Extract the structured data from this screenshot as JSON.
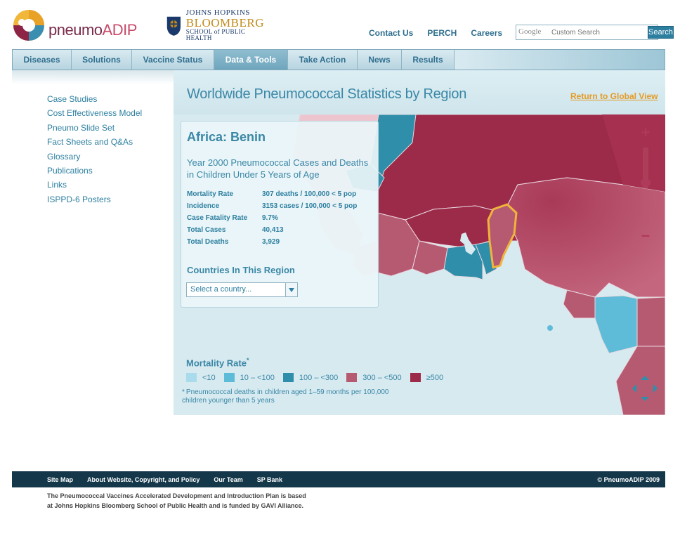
{
  "header": {
    "logo_text_a": "pneumo",
    "logo_text_b": "ADIP",
    "jhu_line1": "JOHNS HOPKINS",
    "jhu_line2": "BLOOMBERG",
    "jhu_line3": "SCHOOL of PUBLIC HEALTH",
    "links": [
      "Contact Us",
      "PERCH",
      "Careers"
    ],
    "search_placeholder": "Custom Search",
    "search_brand": "Google",
    "search_button": "Search"
  },
  "nav": {
    "tabs": [
      {
        "label": "Diseases"
      },
      {
        "label": "Solutions"
      },
      {
        "label": "Vaccine Status"
      },
      {
        "label": "Data & Tools"
      },
      {
        "label": "Take Action"
      },
      {
        "label": "News"
      },
      {
        "label": "Results"
      }
    ],
    "active": "Data & Tools"
  },
  "sidebar": {
    "items": [
      {
        "label": "Case Studies"
      },
      {
        "label": "Cost Effectiveness Model"
      },
      {
        "label": "Pneumo Slide Set"
      },
      {
        "label": "Fact Sheets and Q&As"
      },
      {
        "label": "Glossary"
      },
      {
        "label": "Publications"
      },
      {
        "label": "Links"
      },
      {
        "label": "ISPPD-6 Posters"
      }
    ]
  },
  "main": {
    "title": "Worldwide Pneumococcal Statistics by Region",
    "return_link": "Return to Global View",
    "info": {
      "country": "Africa: Benin",
      "subtitle": "Year 2000 Pneumococcal Cases and Deaths in Children Under 5 Years of Age",
      "stats": [
        {
          "key": "Mortality Rate",
          "value": "307 deaths / 100,000 < 5 pop"
        },
        {
          "key": "Incidence",
          "value": "3153 cases / 100,000 < 5 pop"
        },
        {
          "key": "Case Fatality Rate",
          "value": "9.7%"
        },
        {
          "key": "Total Cases",
          "value": "40,413"
        },
        {
          "key": "Total Deaths",
          "value": "3,929"
        }
      ],
      "countries_heading": "Countries In This Region",
      "select_placeholder": "Select a country..."
    },
    "legend": {
      "title": "Mortality Rate",
      "title_mark": "*",
      "items": [
        {
          "label": "<10",
          "color": "#a9dbec"
        },
        {
          "label": "10 – <100",
          "color": "#5fbcd8"
        },
        {
          "label": "100 – <300",
          "color": "#2f8eaa"
        },
        {
          "label": "300 – <500",
          "color": "#b65a72"
        },
        {
          "label": "≥500",
          "color": "#9c2a49"
        }
      ],
      "footnote_mark": "*",
      "footnote": "Pneumococcal deaths in children aged 1–59 months per 100,000 children younger than 5 years"
    },
    "selected_outline_color": "#f0b43c"
  },
  "footer": {
    "links": [
      "Site Map",
      "About Website, Copyright, and Policy",
      "Our Team",
      "SP Bank"
    ],
    "copyright": "© PneumoADIP 2009",
    "note_line1": "The Pneumococcal Vaccines Accelerated Development and Introduction Plan is based",
    "note_line2": "at Johns Hopkins Bloomberg School of Public Health and is funded by GAVI Alliance."
  }
}
